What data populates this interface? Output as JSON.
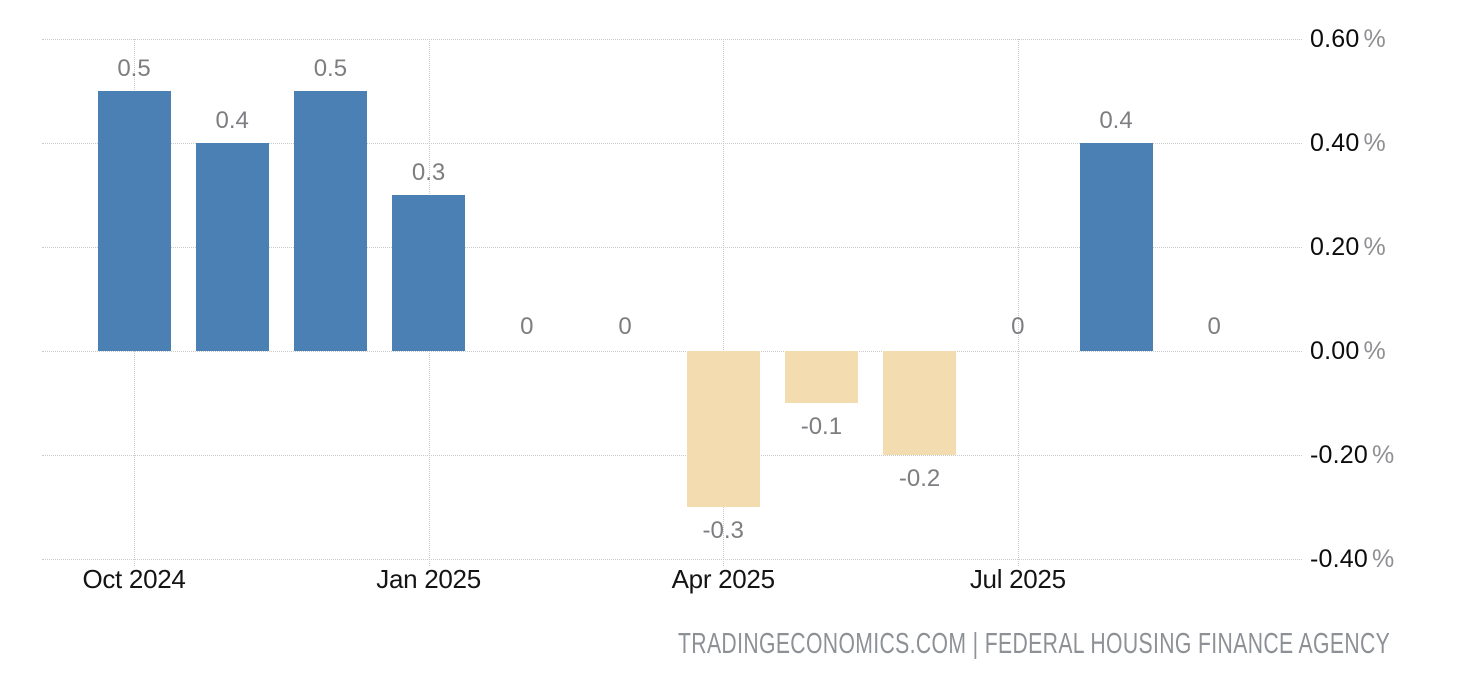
{
  "chart_data": {
    "type": "bar",
    "title": "",
    "xlabel": "",
    "ylabel": "",
    "categories": [
      "Oct 2024",
      "Nov 2024",
      "Dec 2024",
      "Jan 2025",
      "Feb 2025",
      "Mar 2025",
      "Apr 2025",
      "May 2025",
      "Jun 2025",
      "Jul 2025",
      "Aug 2025",
      "Sep 2025"
    ],
    "values": [
      0.5,
      0.4,
      0.5,
      0.3,
      0,
      0,
      -0.3,
      -0.1,
      -0.2,
      0,
      0.4,
      0
    ],
    "bar_labels": [
      "0.5",
      "0.4",
      "0.5",
      "0.3",
      "0",
      "0",
      "-0.3",
      "-0.1",
      "-0.2",
      "0",
      "0.4",
      "0"
    ],
    "x_tick_labels": [
      "Oct 2024",
      "Jan 2025",
      "Apr 2025",
      "Jul 2025"
    ],
    "x_tick_month_indices": [
      0,
      3,
      6,
      9
    ],
    "y_ticks": [
      {
        "value": 0.6,
        "label": "0.60",
        "suffix": "%"
      },
      {
        "value": 0.4,
        "label": "0.40",
        "suffix": "%"
      },
      {
        "value": 0.2,
        "label": "0.20",
        "suffix": "%"
      },
      {
        "value": 0.0,
        "label": "0.00",
        "suffix": "%"
      },
      {
        "value": -0.2,
        "label": "-0.20",
        "suffix": "%"
      },
      {
        "value": -0.4,
        "label": "-0.40",
        "suffix": "%"
      }
    ],
    "ylim": [
      -0.4,
      0.6
    ],
    "grid": "dotted",
    "legend": "none",
    "colors": {
      "positive_bar": "#4a80b4",
      "negative_bar": "#f3ddb0",
      "bar_label_text": "#7d7e81",
      "axis_tick_text": "#141414",
      "percent_suffix_text": "#8f9093",
      "gridline": "#c9cacc",
      "background": "#ffffff"
    }
  },
  "footer": {
    "attribution": "TRADINGECONOMICS.COM | FEDERAL HOUSING FINANCE AGENCY"
  }
}
